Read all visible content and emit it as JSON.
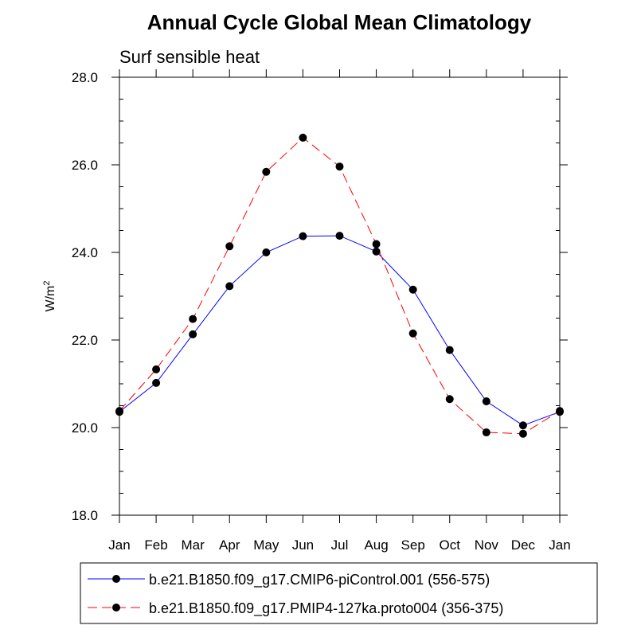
{
  "chart_data": {
    "type": "line",
    "title": "Annual Cycle Global Mean Climatology",
    "subtitle": "Surf sensible heat",
    "ylabel_base": "W/m",
    "ylabel_sup": "2",
    "xlabel": "",
    "categories": [
      "Jan",
      "Feb",
      "Mar",
      "Apr",
      "May",
      "Jun",
      "Jul",
      "Aug",
      "Sep",
      "Oct",
      "Nov",
      "Dec",
      "Jan"
    ],
    "ylim": [
      18.0,
      28.0
    ],
    "yticks": [
      "18.0",
      "20.0",
      "22.0",
      "24.0",
      "26.0",
      "28.0"
    ],
    "grid": false,
    "legend_position": "bottom",
    "series": [
      {
        "name": "b.e21.B1850.f09_g17.CMIP6-piControl.001 (556-575)",
        "color": "#0000ff",
        "dash": "solid",
        "values": [
          20.36,
          21.02,
          22.13,
          23.23,
          24.0,
          24.37,
          24.38,
          24.02,
          23.15,
          21.77,
          20.6,
          20.05,
          20.36
        ]
      },
      {
        "name": "b.e21.B1850.f09_g17.PMIP4-127ka.proto004 (356-375)",
        "color": "#ff0000",
        "dash": "dashed",
        "values": [
          20.38,
          21.33,
          22.48,
          24.14,
          25.84,
          26.62,
          25.96,
          24.19,
          22.15,
          20.65,
          19.89,
          19.86,
          20.38
        ]
      }
    ]
  }
}
